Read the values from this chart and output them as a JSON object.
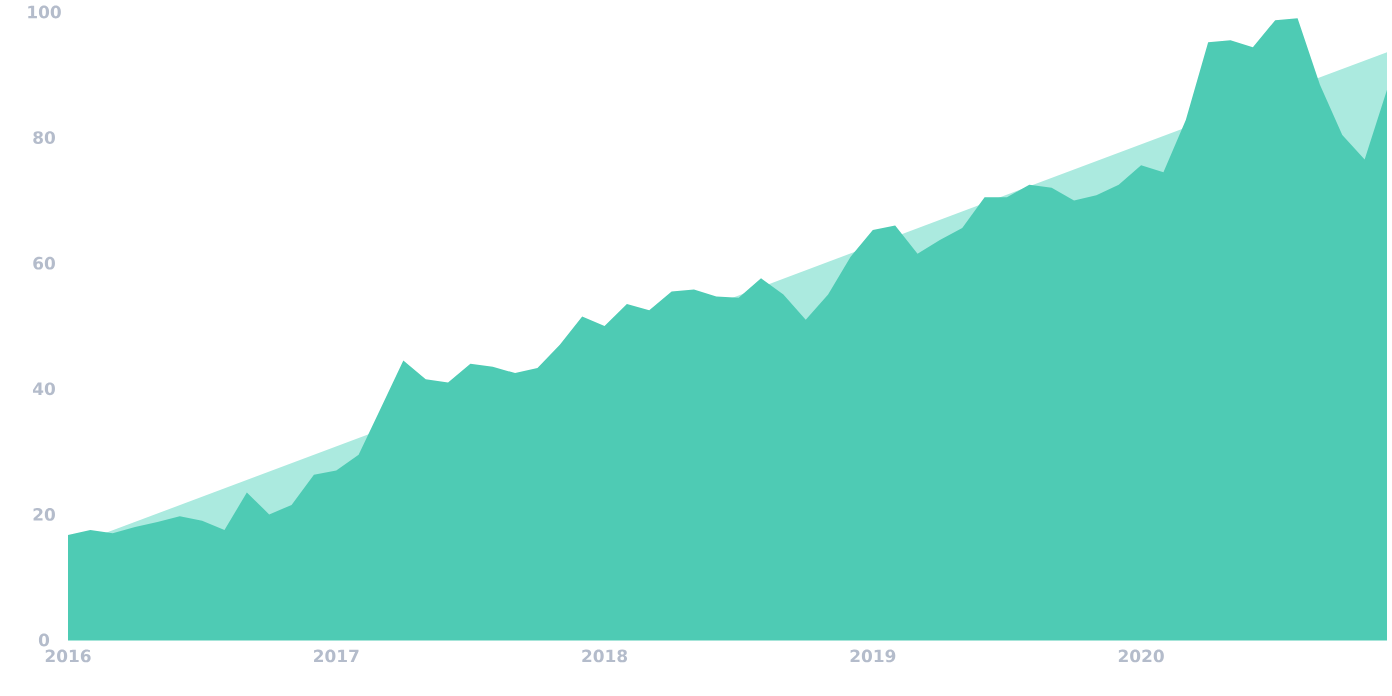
{
  "chart_data": {
    "type": "area",
    "x": [
      "2016-01",
      "2016-02",
      "2016-03",
      "2016-04",
      "2016-05",
      "2016-06",
      "2016-07",
      "2016-08",
      "2016-09",
      "2016-10",
      "2016-11",
      "2016-12",
      "2017-01",
      "2017-02",
      "2017-03",
      "2017-04",
      "2017-05",
      "2017-06",
      "2017-07",
      "2017-08",
      "2017-09",
      "2017-10",
      "2017-11",
      "2017-12",
      "2018-01",
      "2018-02",
      "2018-03",
      "2018-04",
      "2018-05",
      "2018-06",
      "2018-07",
      "2018-08",
      "2018-09",
      "2018-10",
      "2018-11",
      "2018-12",
      "2019-01",
      "2019-02",
      "2019-03",
      "2019-04",
      "2019-05",
      "2019-06",
      "2019-07",
      "2019-08",
      "2019-09",
      "2019-10",
      "2019-11",
      "2019-12",
      "2020-01",
      "2020-02",
      "2020-03",
      "2020-04",
      "2020-05",
      "2020-06",
      "2020-07",
      "2020-08",
      "2020-09",
      "2020-10",
      "2020-11",
      "2020-12"
    ],
    "xlim": [
      "2016-01",
      "2020-12"
    ],
    "ylim": [
      0,
      100
    ],
    "xticks": [
      "2016",
      "2017",
      "2018",
      "2019",
      "2020"
    ],
    "yticks": [
      0,
      20,
      40,
      60,
      80,
      100
    ],
    "series": [
      {
        "color": "#abeadf",
        "x": [
          "2016-01",
          "2020-12"
        ],
        "values": [
          14.8,
          93.6
        ]
      },
      {
        "color": "#4ecbb4",
        "values": [
          16.7,
          17.5,
          17,
          18,
          18.8,
          19.7,
          19,
          17.5,
          23.5,
          20,
          21.5,
          26.3,
          27,
          29.5,
          37,
          44.5,
          41.5,
          41,
          44,
          43.5,
          42.5,
          43.3,
          47,
          51.5,
          50,
          53.5,
          52.5,
          55.5,
          55.8,
          54.7,
          54.5,
          57.6,
          55,
          51,
          55,
          61,
          65.3,
          66,
          61.5,
          63.7,
          65.6,
          70.5,
          70.5,
          72.5,
          72,
          70,
          70.8,
          72.5,
          75.6,
          74.5,
          82.8,
          95.2,
          95.5,
          94.4,
          98.7,
          99,
          88.4,
          80.4,
          76.5,
          87.6
        ]
      }
    ]
  }
}
